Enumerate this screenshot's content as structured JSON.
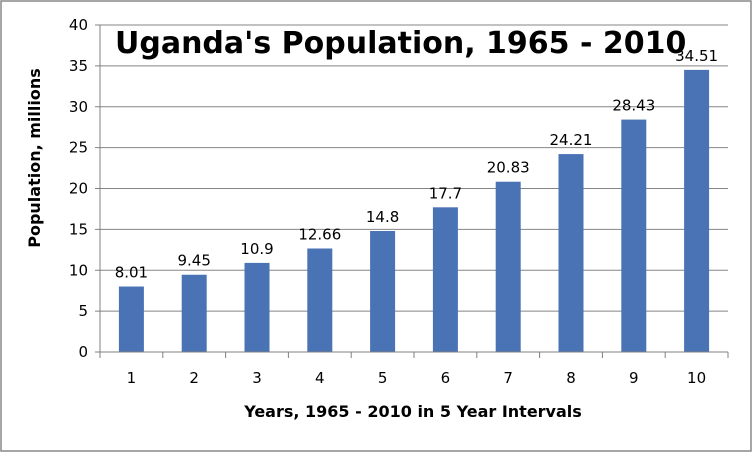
{
  "chart_data": {
    "type": "bar",
    "title": "Uganda's Population, 1965 - 2010",
    "xlabel": "Years, 1965 - 2010 in 5 Year Intervals",
    "ylabel": "Population, millions",
    "categories": [
      "1",
      "2",
      "3",
      "4",
      "5",
      "6",
      "7",
      "8",
      "9",
      "10"
    ],
    "values": [
      8.01,
      9.45,
      10.9,
      12.66,
      14.8,
      17.7,
      20.83,
      24.21,
      28.43,
      34.51
    ],
    "value_labels": [
      "8.01",
      "9.45",
      "10.9",
      "12.66",
      "14.8",
      "17.7",
      "20.83",
      "24.21",
      "28.43",
      "34.51"
    ],
    "ylim": [
      0,
      40
    ],
    "yticks": [
      0,
      5,
      10,
      15,
      20,
      25,
      30,
      35,
      40
    ],
    "grid": true,
    "legend": "none",
    "colors": {
      "bar": "#4a73b5",
      "grid": "#858585",
      "axis": "#808080",
      "frame": "#888888"
    }
  }
}
